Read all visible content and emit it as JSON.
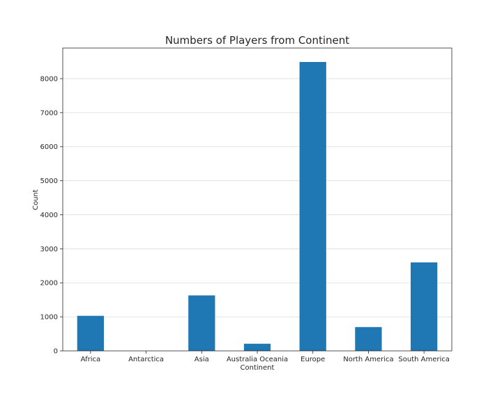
{
  "chart_data": {
    "type": "bar",
    "title": "Numbers of Players from Continent",
    "xlabel": "Continent",
    "ylabel": "Count",
    "categories": [
      "Africa",
      "Antarctica",
      "Asia",
      "Australia Oceania",
      "Europe",
      "North America",
      "South America"
    ],
    "values": [
      1030,
      0,
      1630,
      210,
      8490,
      700,
      2600
    ],
    "ylim": [
      0,
      8900
    ],
    "yticks": [
      0,
      1000,
      2000,
      3000,
      4000,
      5000,
      6000,
      7000,
      8000
    ],
    "grid": "horizontal",
    "bar_color": "#1f77b4"
  }
}
